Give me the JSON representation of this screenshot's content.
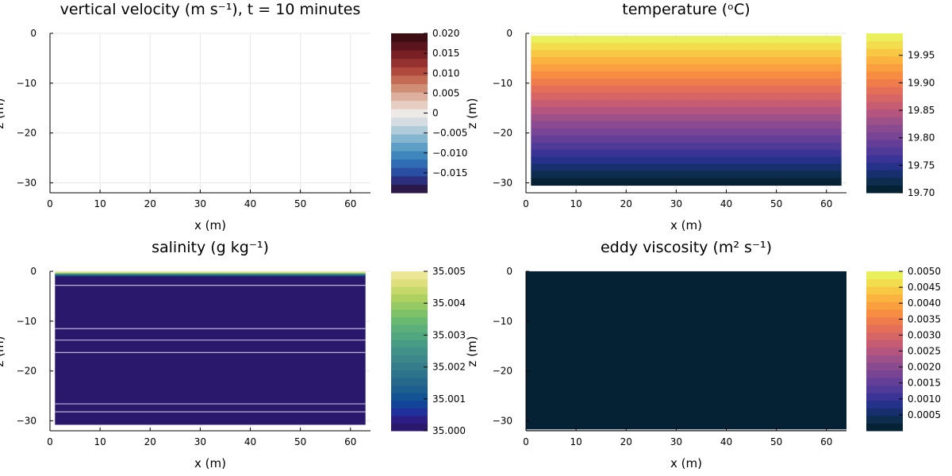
{
  "chart_data": [
    {
      "type": "heatmap",
      "title": "vertical velocity (m s⁻¹), t = 10 minutes",
      "xlabel": "x (m)",
      "ylabel": "z (m)",
      "xlim": [
        0,
        64
      ],
      "ylim": [
        -32,
        0
      ],
      "xticks": [
        0,
        10,
        20,
        30,
        40,
        50,
        60
      ],
      "yticks": [
        0,
        -10,
        -20,
        -30
      ],
      "colormap": "balance",
      "colorbar": {
        "label": "z (m)",
        "range": [
          -0.02,
          0.02
        ],
        "ticks": [
          {
            "value": 0.02,
            "label": "0.020"
          },
          {
            "value": 0.015,
            "label": "0.015"
          },
          {
            "value": 0.01,
            "label": "0.010"
          },
          {
            "value": 0.005,
            "label": "0.005"
          },
          {
            "value": 0,
            "label": "0"
          },
          {
            "value": -0.005,
            "label": "−0.005"
          },
          {
            "value": -0.01,
            "label": "−0.010"
          },
          {
            "value": -0.015,
            "label": "−0.015"
          }
        ],
        "colors": [
          "#2a1a4a",
          "#2b2f7e",
          "#2a4fa2",
          "#2f6cb3",
          "#3f86bd",
          "#5d9ec6",
          "#85b6d0",
          "#b0cbd9",
          "#d6dde2",
          "#ece9e6",
          "#e6cfc2",
          "#ddb09d",
          "#d18e77",
          "#c46b56",
          "#b04a3e",
          "#94302f",
          "#782024",
          "#5a151c",
          "#3d0f15"
        ]
      },
      "field": "empty",
      "grid": true
    },
    {
      "type": "heatmap",
      "title": "temperature (ᵒC)",
      "xlabel": "x (m)",
      "ylabel": "",
      "xlim": [
        0,
        64
      ],
      "ylim": [
        -32,
        0
      ],
      "xticks": [
        0,
        10,
        20,
        30,
        40,
        50,
        60
      ],
      "yticks": [
        0,
        -10,
        -20,
        -30
      ],
      "colormap": "thermal",
      "colorbar": {
        "label": "",
        "range": [
          19.7,
          19.99
        ],
        "ticks": [
          {
            "value": 19.95,
            "label": "19.95"
          },
          {
            "value": 19.9,
            "label": "19.90"
          },
          {
            "value": 19.85,
            "label": "19.85"
          },
          {
            "value": 19.8,
            "label": "19.80"
          },
          {
            "value": 19.75,
            "label": "19.75"
          },
          {
            "value": 19.7,
            "label": "19.70"
          }
        ],
        "colors": [
          "#052234",
          "#0d2c4e",
          "#172f6d",
          "#26318a",
          "#3b3496",
          "#503a98",
          "#633f97",
          "#774594",
          "#8a4a8f",
          "#9e5088",
          "#b3557e",
          "#c55c72",
          "#d66566",
          "#e46f58",
          "#ef7d4b",
          "#f68d42",
          "#fa9f3f",
          "#fbb33f",
          "#f8c845",
          "#f2dd4f",
          "#eaf05c"
        ],
        "scale_on_bar": [
          19.7,
          19.99
        ]
      },
      "field": "horizontal layers, warm at surface (19.99) to cool at depth (19.70)",
      "field_z_range": [
        -30.5,
        -0.5
      ],
      "field_x_range": [
        1,
        63
      ],
      "grid": true
    },
    {
      "type": "heatmap",
      "title": "salinity (g kg⁻¹)",
      "xlabel": "x (m)",
      "ylabel": "z (m)",
      "xlim": [
        0,
        64
      ],
      "ylim": [
        -32,
        0
      ],
      "xticks": [
        0,
        10,
        20,
        30,
        40,
        50,
        60
      ],
      "yticks": [
        0,
        -10,
        -20,
        -30
      ],
      "colormap": "haline",
      "colorbar": {
        "label": "z (m)",
        "range": [
          35.0,
          35.005
        ],
        "ticks": [
          {
            "value": 35.005,
            "label": "35.005"
          },
          {
            "value": 35.004,
            "label": "35.004"
          },
          {
            "value": 35.003,
            "label": "35.003"
          },
          {
            "value": 35.002,
            "label": "35.002"
          },
          {
            "value": 35.001,
            "label": "35.001"
          },
          {
            "value": 35.0,
            "label": "35.000"
          }
        ],
        "colors": [
          "#2a186c",
          "#2d1e86",
          "#21319b",
          "#124498",
          "#135393",
          "#1d5f8f",
          "#26698d",
          "#2e738c",
          "#357d8b",
          "#3c878a",
          "#429188",
          "#489c84",
          "#50a67f",
          "#5ab078",
          "#69ba70",
          "#7dc268",
          "#95c962",
          "#aed061",
          "#c6d86a",
          "#dcdf7c",
          "#ece697"
        ]
      },
      "field": "uniform ~35.000 with thin fresher surface layer",
      "field_x_range": [
        1,
        63
      ],
      "field_z_range": [
        -30.8,
        -0.5
      ],
      "contour_lines_z": [
        -2.8,
        -11.5,
        -13.8,
        -16.3,
        -26.6,
        -28.2
      ],
      "grid": true
    },
    {
      "type": "heatmap",
      "title": "eddy viscosity (m² s⁻¹)",
      "xlabel": "x (m)",
      "ylabel": "",
      "xlim": [
        0,
        64
      ],
      "ylim": [
        -32,
        0
      ],
      "xticks": [
        0,
        10,
        20,
        30,
        40,
        50,
        60
      ],
      "yticks": [
        0,
        -10,
        -20,
        -30
      ],
      "colormap": "thermal",
      "colorbar": {
        "label": "",
        "range": [
          0.0,
          0.005
        ],
        "ticks": [
          {
            "value": 0.005,
            "label": "0.0050"
          },
          {
            "value": 0.0045,
            "label": "0.0045"
          },
          {
            "value": 0.004,
            "label": "0.0040"
          },
          {
            "value": 0.0035,
            "label": "0.0035"
          },
          {
            "value": 0.003,
            "label": "0.0030"
          },
          {
            "value": 0.0025,
            "label": "0.0025"
          },
          {
            "value": 0.002,
            "label": "0.0020"
          },
          {
            "value": 0.0015,
            "label": "0.0015"
          },
          {
            "value": 0.001,
            "label": "0.0010"
          },
          {
            "value": 0.0005,
            "label": "0.0005"
          }
        ],
        "colors": [
          "#052234",
          "#0d2c4e",
          "#172f6d",
          "#26318a",
          "#3b3496",
          "#503a98",
          "#633f97",
          "#774594",
          "#8a4a8f",
          "#9e5088",
          "#b3557e",
          "#c55c72",
          "#d66566",
          "#e46f58",
          "#ef7d4b",
          "#f68d42",
          "#fa9f3f",
          "#fbb33f",
          "#f8c845",
          "#f2dd4f",
          "#eaf05c"
        ]
      },
      "field": "uniform ~0 (darkest color) across domain",
      "field_x_range": [
        0,
        64
      ],
      "field_z_range": [
        -31.7,
        0
      ],
      "grid": true
    }
  ]
}
